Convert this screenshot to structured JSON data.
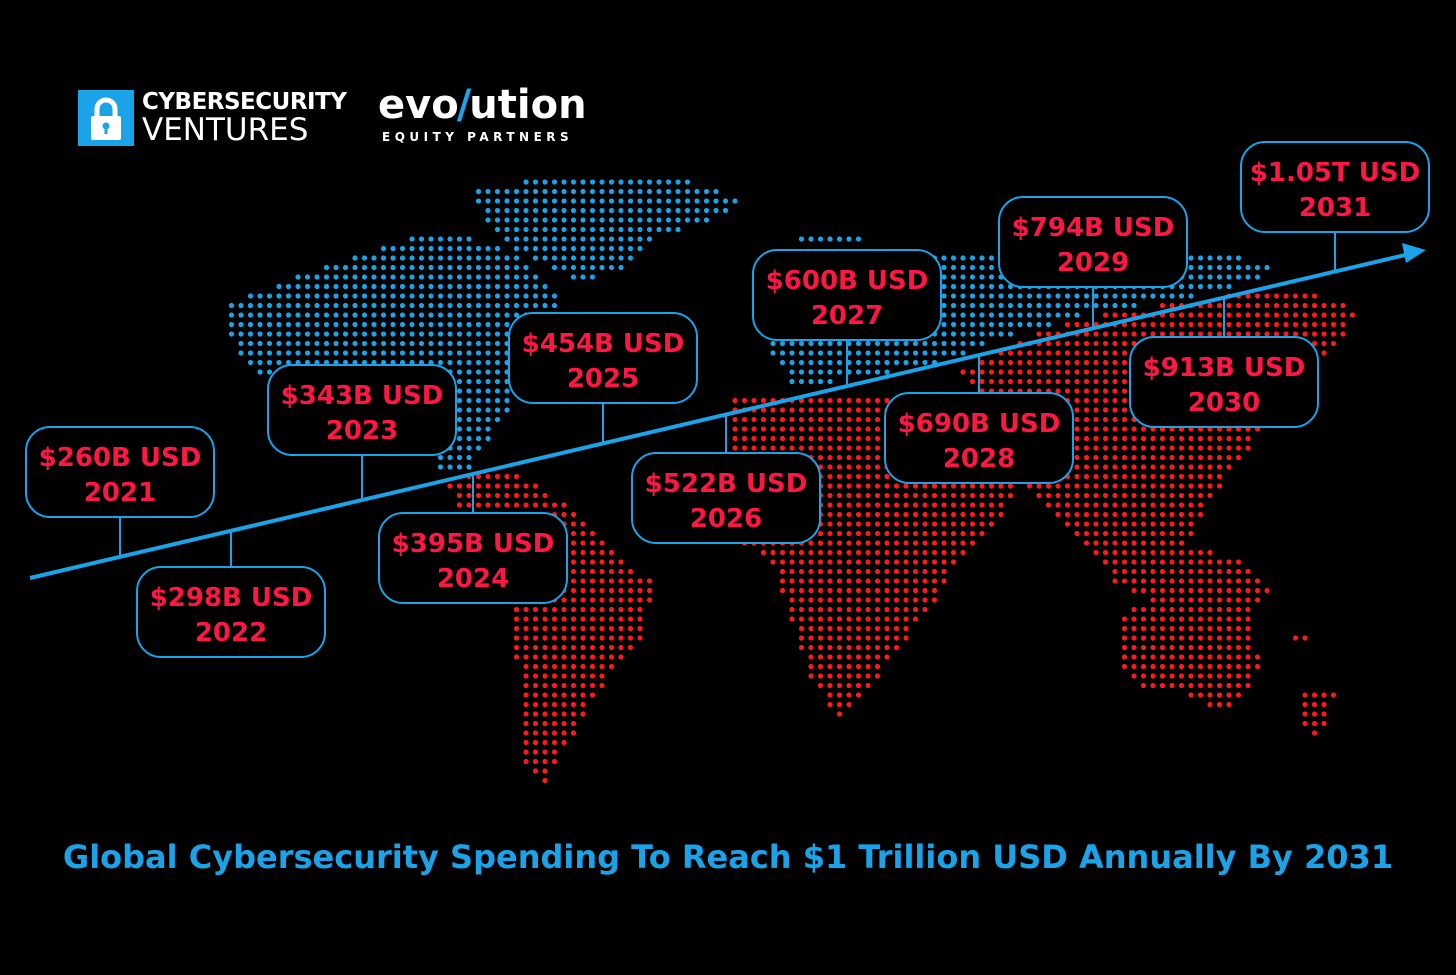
{
  "brand": {
    "cv_line1": "CYBERSECURITY",
    "cv_line2": "VENTURES",
    "evo_part1": "evo",
    "evo_slash": "/",
    "evo_part2": "ution",
    "evo_sub": "EQUITY PARTNERS"
  },
  "colors": {
    "background": "#000000",
    "accent_blue": "#1aa3e8",
    "value_red": "#ff1744",
    "map_blue": "#1aa3e8",
    "map_red": "#ff1a1a"
  },
  "chart_data": {
    "type": "line",
    "title": "Global Cybersecurity Spending To Reach $1 Trillion USD Annually By 2031",
    "xlabel": "",
    "ylabel": "",
    "unit": "USD",
    "points": [
      {
        "year": "2021",
        "label": "$260B USD",
        "value_billion": 260
      },
      {
        "year": "2022",
        "label": "$298B USD",
        "value_billion": 298
      },
      {
        "year": "2023",
        "label": "$343B USD",
        "value_billion": 343
      },
      {
        "year": "2024",
        "label": "$395B USD",
        "value_billion": 395
      },
      {
        "year": "2025",
        "label": "$454B USD",
        "value_billion": 454
      },
      {
        "year": "2026",
        "label": "$522B USD",
        "value_billion": 522
      },
      {
        "year": "2027",
        "label": "$600B USD",
        "value_billion": 600
      },
      {
        "year": "2028",
        "label": "$690B USD",
        "value_billion": 690
      },
      {
        "year": "2029",
        "label": "$794B USD",
        "value_billion": 794
      },
      {
        "year": "2030",
        "label": "$913B USD",
        "value_billion": 913
      },
      {
        "year": "2031",
        "label": "$1.05T USD",
        "value_billion": 1050
      }
    ]
  }
}
